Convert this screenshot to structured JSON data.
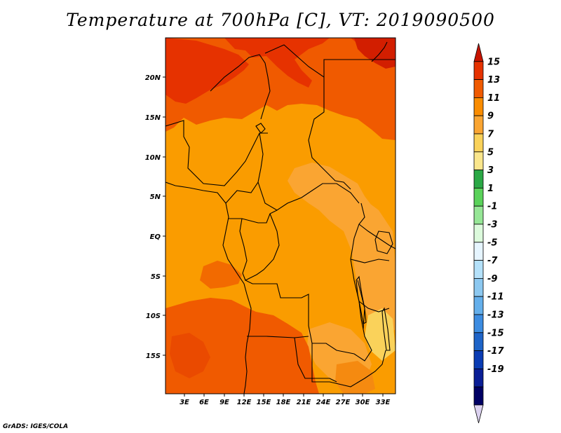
{
  "title": "Temperature at 700hPa [C], VT: 2019090500",
  "footer": "GrADS: IGES/COLA",
  "map": {
    "lat_labels": [
      "20N",
      "15N",
      "10N",
      "5N",
      "EQ",
      "5S",
      "10S",
      "15S"
    ],
    "lon_labels": [
      "3E",
      "6E",
      "9E",
      "12E",
      "15E",
      "18E",
      "21E",
      "24E",
      "27E",
      "30E",
      "33E"
    ],
    "region": "Central Africa"
  },
  "colorbar": {
    "labels": [
      "15",
      "13",
      "11",
      "9",
      "7",
      "5",
      "3",
      "1",
      "-1",
      "-3",
      "-5",
      "-7",
      "-9",
      "-11",
      "-13",
      "-15",
      "-17",
      "-19"
    ],
    "colors": [
      "#c81400",
      "#e63200",
      "#f05a00",
      "#fa8c00",
      "#faa532",
      "#fad25a",
      "#fae68c",
      "#2aa845",
      "#5ad25a",
      "#96e696",
      "#dcfadc",
      "#e6f5ff",
      "#b4e1fa",
      "#8cc8f0",
      "#64afeb",
      "#3c8ce1",
      "#1e64c8",
      "#0a3cb4",
      "#0a1e96",
      "#000064",
      "#dcd2f0"
    ]
  }
}
